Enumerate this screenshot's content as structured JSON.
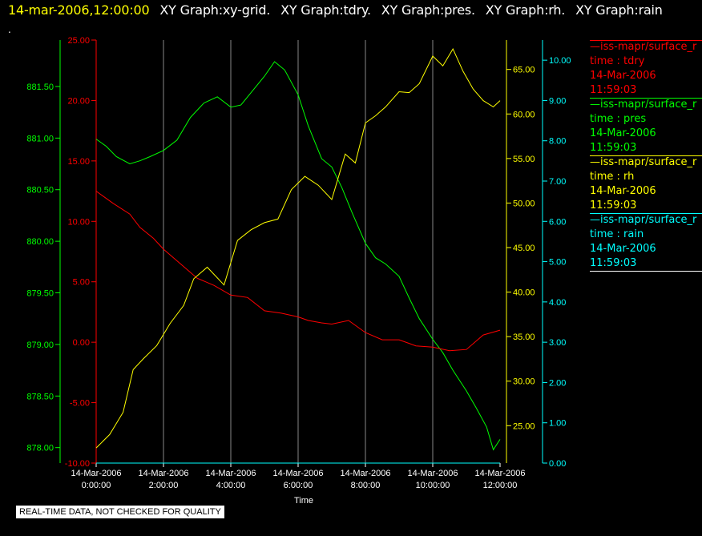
{
  "header": {
    "timestamp": "14-mar-2006,12:00:00",
    "graph_names": [
      "XY Graph:xy-grid.",
      "XY Graph:tdry.",
      "XY Graph:pres.",
      "XY Graph:rh.",
      "XY Graph:rain"
    ],
    "dot": "."
  },
  "legend": [
    {
      "name": "—iss-mapr/surface_r",
      "var": "time : tdry",
      "date": "14-Mar-2006",
      "time": "11:59:03",
      "color": "#ff0000"
    },
    {
      "name": "—iss-mapr/surface_r",
      "var": "time : pres",
      "date": "14-Mar-2006",
      "time": "11:59:03",
      "color": "#00ff00"
    },
    {
      "name": "—iss-mapr/surface_r",
      "var": "time : rh",
      "date": "14-Mar-2006",
      "time": "11:59:03",
      "color": "#ffff00"
    },
    {
      "name": "—iss-mapr/surface_r",
      "var": "time : rain",
      "date": "14-Mar-2006",
      "time": "11:59:03",
      "color": "#00ffff"
    }
  ],
  "quality_note": "REAL-TIME DATA, NOT CHECKED FOR QUALITY",
  "chart_data": {
    "type": "line",
    "xlabel": "Time",
    "x_ticks": [
      {
        "date": "14-Mar-2006",
        "time": "0:00:00",
        "hour": 0
      },
      {
        "date": "14-Mar-2006",
        "time": "2:00:00",
        "hour": 2
      },
      {
        "date": "14-Mar-2006",
        "time": "4:00:00",
        "hour": 4
      },
      {
        "date": "14-Mar-2006",
        "time": "6:00:00",
        "hour": 6
      },
      {
        "date": "14-Mar-2006",
        "time": "8:00:00",
        "hour": 8
      },
      {
        "date": "14-Mar-2006",
        "time": "10:00:00",
        "hour": 10
      },
      {
        "date": "14-Mar-2006",
        "time": "12:00:00",
        "hour": 12
      }
    ],
    "xlim_hours": [
      0,
      12
    ],
    "axes": {
      "pres": {
        "color": "#00ff00",
        "ylim": [
          877.85,
          881.95
        ],
        "ticks": [
          "878.00",
          "878.50",
          "879.00",
          "879.50",
          "880.00",
          "880.50",
          "881.00",
          "881.50"
        ],
        "tick_values": [
          878.0,
          878.5,
          879.0,
          879.5,
          880.0,
          880.5,
          881.0,
          881.5
        ]
      },
      "tdry": {
        "color": "#ff0000",
        "ylim": [
          -10,
          25
        ],
        "ticks": [
          "-10.00",
          "-5.00",
          "0.00",
          "5.00",
          "10.00",
          "15.00",
          "20.00",
          "25.00"
        ],
        "tick_values": [
          -10,
          -5,
          0,
          5,
          10,
          15,
          20,
          25
        ]
      },
      "rh": {
        "color": "#ffff00",
        "ylim": [
          20.8,
          68.3
        ],
        "ticks": [
          "25.00",
          "30.00",
          "35.00",
          "40.00",
          "45.00",
          "50.00",
          "55.00",
          "60.00",
          "65.00"
        ],
        "tick_values": [
          25,
          30,
          35,
          40,
          45,
          50,
          55,
          60,
          65
        ]
      },
      "rain": {
        "color": "#00ffff",
        "ylim": [
          0,
          10.5
        ],
        "ticks": [
          "0.00",
          "1.00",
          "2.00",
          "3.00",
          "4.00",
          "5.00",
          "6.00",
          "7.00",
          "8.00",
          "9.00",
          "10.00"
        ],
        "tick_values": [
          0,
          1,
          2,
          3,
          4,
          5,
          6,
          7,
          8,
          9,
          10
        ]
      }
    },
    "series": [
      {
        "name": "pres",
        "axis": "pres",
        "color": "#00ff00",
        "x": [
          0,
          0.3,
          0.6,
          1,
          1.3,
          1.6,
          2,
          2.4,
          2.8,
          3.2,
          3.6,
          4,
          4.3,
          4.6,
          5,
          5.3,
          5.6,
          6,
          6.3,
          6.7,
          7,
          7.3,
          7.6,
          8,
          8.3,
          8.6,
          9,
          9.3,
          9.6,
          10,
          10.3,
          10.6,
          11,
          11.3,
          11.6,
          11.8,
          12
        ],
        "values": [
          880.99,
          880.92,
          880.82,
          880.75,
          880.78,
          880.82,
          880.88,
          880.98,
          881.2,
          881.34,
          881.4,
          881.3,
          881.32,
          881.44,
          881.6,
          881.74,
          881.66,
          881.42,
          881.12,
          880.8,
          880.72,
          880.52,
          880.28,
          879.98,
          879.84,
          879.78,
          879.66,
          879.45,
          879.25,
          879.05,
          878.92,
          878.75,
          878.55,
          878.38,
          878.2,
          877.98,
          878.08
        ]
      },
      {
        "name": "tdry",
        "axis": "tdry",
        "color": "#ff0000",
        "x": [
          0,
          0.5,
          1,
          1.3,
          1.7,
          2,
          2.5,
          3,
          3.5,
          4,
          4.5,
          5,
          5.5,
          6,
          6.3,
          6.7,
          7,
          7.5,
          8,
          8.5,
          9,
          9.5,
          10,
          10.5,
          11,
          11.5,
          12
        ],
        "values": [
          12.5,
          11.5,
          10.6,
          9.5,
          8.6,
          7.7,
          6.5,
          5.3,
          4.7,
          3.9,
          3.7,
          2.6,
          2.4,
          2.1,
          1.8,
          1.6,
          1.5,
          1.8,
          0.8,
          0.2,
          0.2,
          -0.3,
          -0.4,
          -0.7,
          -0.6,
          0.6,
          1.0
        ]
      },
      {
        "name": "rh",
        "axis": "rh",
        "color": "#ffff00",
        "x": [
          0,
          0.4,
          0.8,
          1.1,
          1.4,
          1.8,
          2.2,
          2.6,
          2.9,
          3.3,
          3.8,
          4.2,
          4.6,
          5,
          5.4,
          5.8,
          6.2,
          6.6,
          7,
          7.4,
          7.7,
          8,
          8.3,
          8.6,
          9,
          9.3,
          9.6,
          10,
          10.3,
          10.6,
          10.9,
          11.2,
          11.5,
          11.8,
          12
        ],
        "values": [
          22.5,
          24,
          26.5,
          31.3,
          32.5,
          34,
          36.5,
          38.5,
          41.5,
          42.8,
          40.8,
          45.8,
          47,
          47.8,
          48.2,
          51.5,
          53,
          52,
          50.4,
          55.5,
          54.5,
          59,
          59.8,
          60.8,
          62.5,
          62.4,
          63.4,
          66.5,
          65.4,
          67.3,
          64.8,
          62.8,
          61.5,
          60.8,
          61.5
        ]
      },
      {
        "name": "rain",
        "axis": "rain",
        "color": "#00ffff",
        "x": [
          0,
          12
        ],
        "values": [
          0,
          0
        ]
      }
    ]
  }
}
